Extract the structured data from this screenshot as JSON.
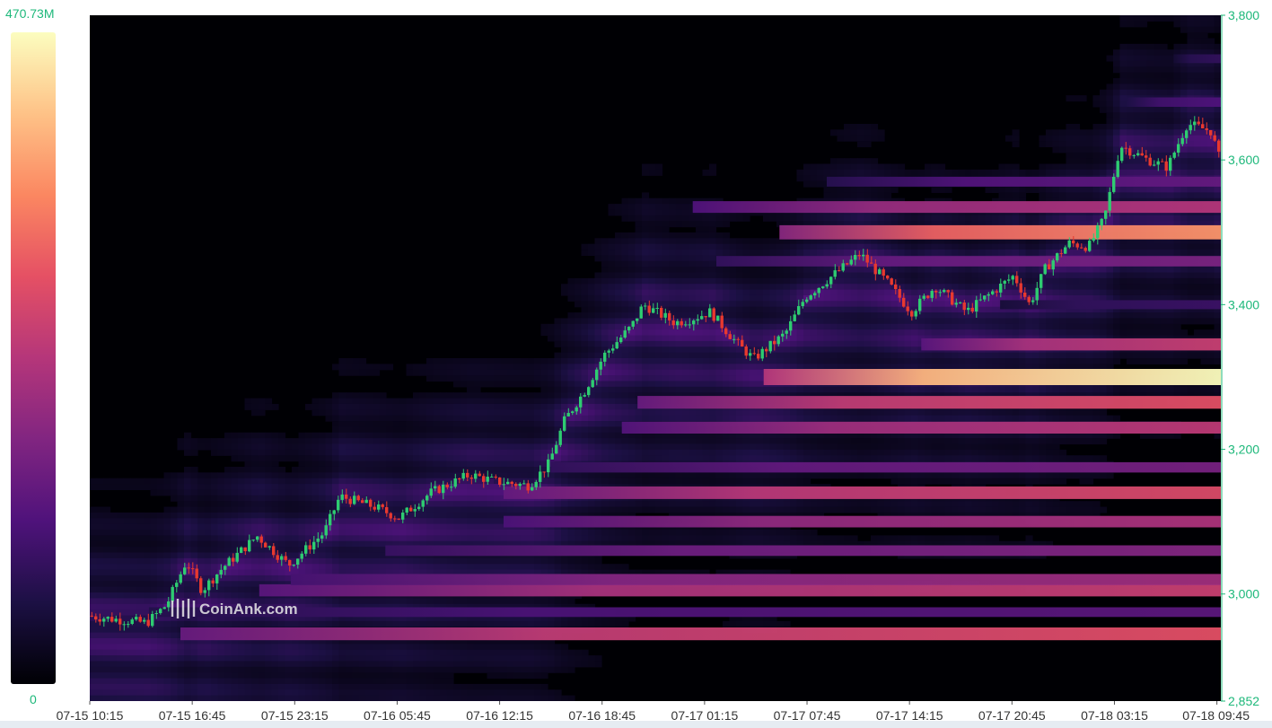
{
  "chart_data": {
    "type": "heatmap",
    "title": "",
    "subtitle": "",
    "watermark": "CoinAnk.com",
    "x_tick_labels": [
      "07-15 10:15",
      "07-15 16:45",
      "07-15 23:15",
      "07-16 05:45",
      "07-16 12:15",
      "07-16 18:45",
      "07-17 01:15",
      "07-17 07:45",
      "07-17 14:15",
      "07-17 20:45",
      "07-18 03:15",
      "07-18 09:45"
    ],
    "y_axis": {
      "min": 2852,
      "max": 3800,
      "ticks": [
        3800,
        3600,
        3400,
        3200,
        3000,
        2852
      ],
      "tick_labels": [
        "3,800",
        "3,600",
        "3,400",
        "3,200",
        "3,000",
        "2,852"
      ],
      "position": "right"
    },
    "colorbar": {
      "max_label": "470.73M",
      "min_label": "0",
      "min": 0,
      "max": 470730000,
      "position": "left"
    },
    "colormap": [
      "#000004",
      "#1c1044",
      "#4f127b",
      "#812581",
      "#b5367a",
      "#e55064",
      "#fb8761",
      "#fec287",
      "#fcfdbf"
    ],
    "colors": {
      "up": "#2ecc71",
      "down": "#e8392f",
      "tick_y": "#1db87a"
    },
    "price_series": {
      "start": "07-15 10:15",
      "end": "07-18 10:00",
      "close_keyframes": [
        [
          "07-15 10:15",
          2970
        ],
        [
          "07-15 12:00",
          2965
        ],
        [
          "07-15 14:00",
          2960
        ],
        [
          "07-15 15:15",
          2985
        ],
        [
          "07-15 16:30",
          3045
        ],
        [
          "07-15 17:30",
          3005
        ],
        [
          "07-15 18:45",
          3035
        ],
        [
          "07-15 21:00",
          3080
        ],
        [
          "07-15 23:00",
          3040
        ],
        [
          "07-16 01:15",
          3085
        ],
        [
          "07-16 02:15",
          3135
        ],
        [
          "07-16 04:30",
          3120
        ],
        [
          "07-16 06:00",
          3105
        ],
        [
          "07-16 08:00",
          3140
        ],
        [
          "07-16 10:30",
          3165
        ],
        [
          "07-16 12:15",
          3155
        ],
        [
          "07-16 14:15",
          3150
        ],
        [
          "07-16 15:30",
          3180
        ],
        [
          "07-16 16:30",
          3240
        ],
        [
          "07-16 17:45",
          3280
        ],
        [
          "07-16 19:00",
          3330
        ],
        [
          "07-16 20:45",
          3370
        ],
        [
          "07-16 21:30",
          3400
        ],
        [
          "07-16 23:30",
          3375
        ],
        [
          "07-17 00:30",
          3380
        ],
        [
          "07-17 01:45",
          3390
        ],
        [
          "07-17 03:30",
          3345
        ],
        [
          "07-17 04:30",
          3325
        ],
        [
          "07-17 06:30",
          3360
        ],
        [
          "07-17 07:45",
          3410
        ],
        [
          "07-17 09:30",
          3440
        ],
        [
          "07-17 11:15",
          3470
        ],
        [
          "07-17 13:00",
          3430
        ],
        [
          "07-17 14:30",
          3390
        ],
        [
          "07-17 16:00",
          3425
        ],
        [
          "07-17 18:00",
          3390
        ],
        [
          "07-17 19:30",
          3415
        ],
        [
          "07-17 21:00",
          3440
        ],
        [
          "07-17 22:00",
          3400
        ],
        [
          "07-17 23:00",
          3450
        ],
        [
          "07-18 00:30",
          3485
        ],
        [
          "07-18 01:45",
          3480
        ],
        [
          "07-18 02:45",
          3520
        ],
        [
          "07-18 03:45",
          3620
        ],
        [
          "07-18 05:30",
          3600
        ],
        [
          "07-18 06:45",
          3590
        ],
        [
          "07-18 08:00",
          3650
        ],
        [
          "07-18 09:30",
          3640
        ],
        [
          "07-18 10:00",
          3605
        ]
      ]
    },
    "liquidation_bands": [
      {
        "price": 2945,
        "value": 0.62,
        "from": "07-15 16:00"
      },
      {
        "price": 2975,
        "value": 0.28,
        "from": "07-15 14:00"
      },
      {
        "price": 3005,
        "value": 0.55,
        "from": "07-15 21:00"
      },
      {
        "price": 3020,
        "value": 0.45,
        "from": "07-15 23:00"
      },
      {
        "price": 3060,
        "value": 0.38,
        "from": "07-16 05:00"
      },
      {
        "price": 3100,
        "value": 0.48,
        "from": "07-16 12:30"
      },
      {
        "price": 3140,
        "value": 0.6,
        "from": "07-16 12:30"
      },
      {
        "price": 3175,
        "value": 0.35,
        "from": "07-16 15:30"
      },
      {
        "price": 3230,
        "value": 0.52,
        "from": "07-16 20:00"
      },
      {
        "price": 3265,
        "value": 0.62,
        "from": "07-16 21:00"
      },
      {
        "price": 3300,
        "value": 1.0,
        "from": "07-17 05:00"
      },
      {
        "price": 3345,
        "value": 0.55,
        "from": "07-17 15:00"
      },
      {
        "price": 3400,
        "value": 0.2,
        "from": "07-17 20:00"
      },
      {
        "price": 3460,
        "value": 0.36,
        "from": "07-17 02:00"
      },
      {
        "price": 3500,
        "value": 0.78,
        "from": "07-17 06:00"
      },
      {
        "price": 3535,
        "value": 0.5,
        "from": "07-17 00:30"
      },
      {
        "price": 3570,
        "value": 0.3,
        "from": "07-17 09:00"
      },
      {
        "price": 3680,
        "value": 0.25,
        "from": "07-18 04:00"
      },
      {
        "price": 3740,
        "value": 0.18,
        "from": "07-18 07:00"
      }
    ]
  }
}
